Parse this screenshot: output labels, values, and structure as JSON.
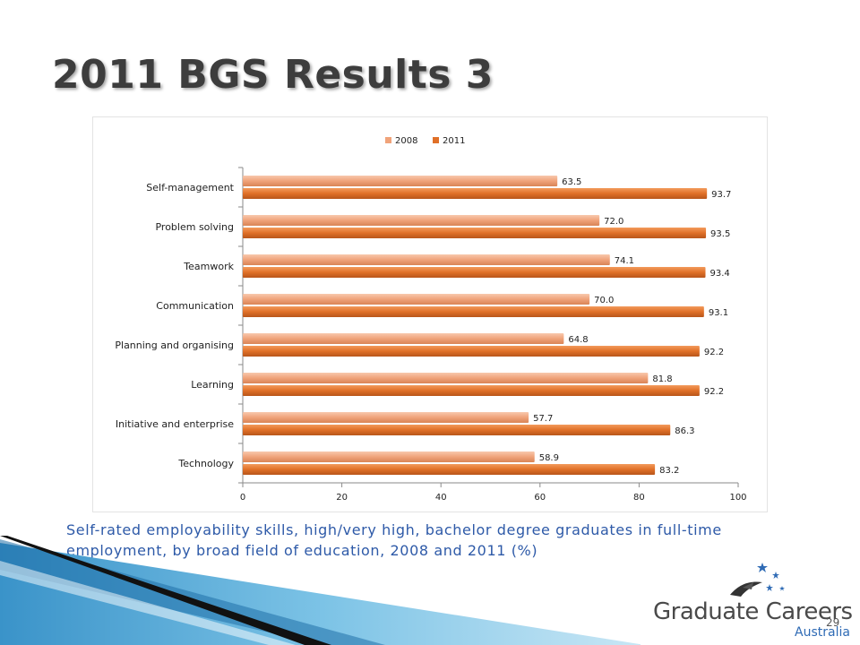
{
  "slide": {
    "title": "2011 BGS Results 3",
    "caption": "Self-rated employability skills, high/very high, bachelor degree graduates in full-time employment, by broad field of education, 2008 and 2011 (%)",
    "page_number": "29"
  },
  "logo": {
    "main": "Graduate Careers",
    "sub": "Australia"
  },
  "chart_data": {
    "type": "bar",
    "orientation": "horizontal",
    "categories": [
      "Self-management",
      "Problem solving",
      "Teamwork",
      "Communication",
      "Planning and organising",
      "Learning",
      "Initiative and enterprise",
      "Technology"
    ],
    "series": [
      {
        "name": "2008",
        "values": [
          63.5,
          72.0,
          74.1,
          70.0,
          64.8,
          81.8,
          57.7,
          58.9
        ],
        "labels": [
          "63.5",
          "72.0",
          "74.1",
          "70.0",
          "64.8",
          "81.8",
          "57.7",
          "58.9"
        ],
        "color": "#f0a37a"
      },
      {
        "name": "2011",
        "values": [
          93.7,
          93.5,
          93.4,
          93.1,
          92.2,
          92.2,
          86.3,
          83.2
        ],
        "labels": [
          "93.7",
          "93.5",
          "93.4",
          "93.1",
          "92.2",
          "92.2",
          "86.3",
          "83.2"
        ],
        "color": "#e07028"
      }
    ],
    "xlabel": "%",
    "xlim": [
      0,
      100
    ],
    "xticks": [
      "0",
      "20",
      "40",
      "60",
      "80",
      "100"
    ],
    "legend": "top",
    "grid": false
  }
}
